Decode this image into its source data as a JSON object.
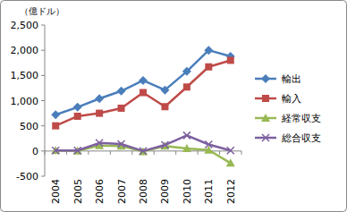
{
  "chart_data": {
    "type": "line",
    "y_label": "（億ドル）",
    "categories": [
      "2004",
      "2005",
      "2006",
      "2007",
      "2008",
      "2009",
      "2010",
      "2011",
      "2012"
    ],
    "series": [
      {
        "name": "輸出",
        "color": "#4a7ebb",
        "marker": "diamond",
        "values": [
          720,
          870,
          1040,
          1190,
          1400,
          1210,
          1580,
          2000,
          1880
        ]
      },
      {
        "name": "輸入",
        "color": "#be4b48",
        "marker": "square",
        "values": [
          500,
          690,
          750,
          850,
          1160,
          880,
          1270,
          1670,
          1800
        ]
      },
      {
        "name": "経常収支",
        "color": "#98b954",
        "marker": "triangle",
        "values": [
          10,
          0,
          110,
          100,
          -10,
          100,
          50,
          20,
          -240
        ]
      },
      {
        "name": "総合収支",
        "color": "#7d60a0",
        "marker": "x",
        "values": [
          10,
          10,
          160,
          140,
          0,
          120,
          310,
          130,
          10
        ]
      }
    ],
    "ylim": [
      -500,
      2500
    ],
    "yticks": [
      -500,
      0,
      500,
      {
        "value": 1000,
        "label": "1,000"
      },
      {
        "value": 1500,
        "label": "1,500"
      },
      {
        "value": 2000,
        "label": "2,000"
      },
      {
        "value": 2500,
        "label": "2,500"
      }
    ],
    "grid": false,
    "legend": "right"
  }
}
